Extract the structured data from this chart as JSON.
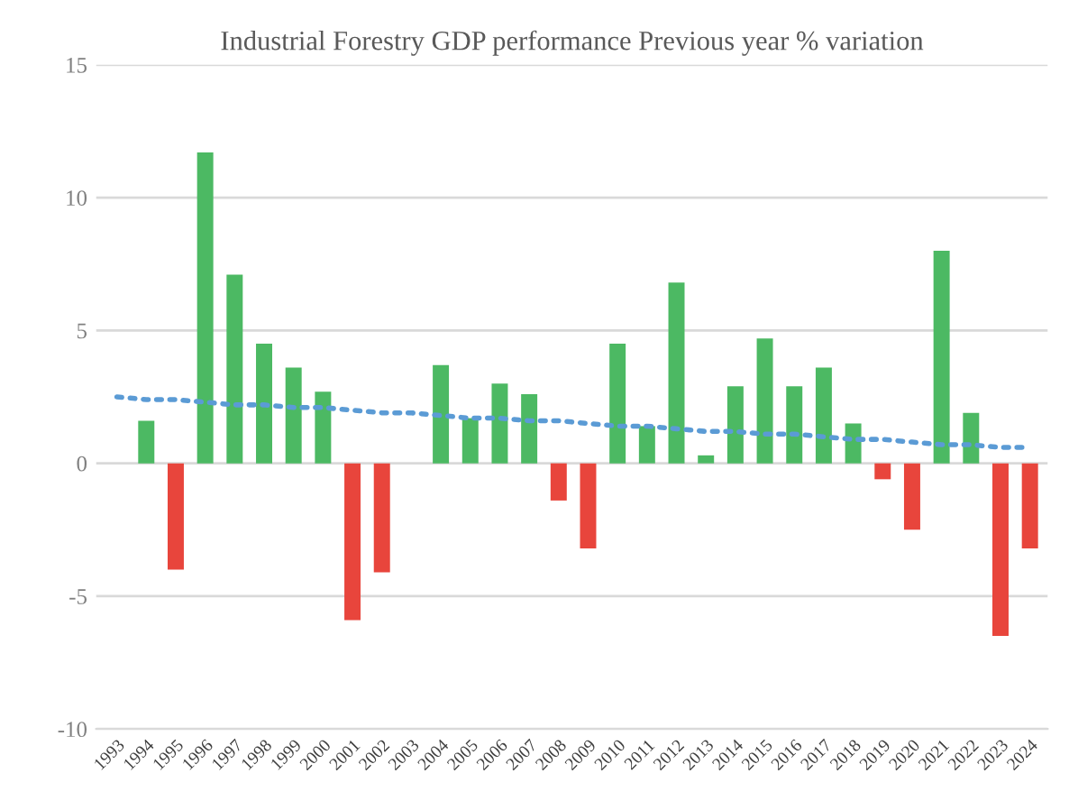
{
  "chart_data": {
    "type": "bar",
    "title": "Industrial Forestry GDP performance Previous year % variation",
    "categories": [
      "1993",
      "1994",
      "1995",
      "1996",
      "1997",
      "1998",
      "1999",
      "2000",
      "2001",
      "2002",
      "2003",
      "2004",
      "2005",
      "2006",
      "2007",
      "2008",
      "2009",
      "2010",
      "2011",
      "2012",
      "2013",
      "2014",
      "2015",
      "2016",
      "2017",
      "2018",
      "2019",
      "2020",
      "2021",
      "2022",
      "2023",
      "2024"
    ],
    "series": [
      {
        "values": [
          0,
          1.6,
          -4.0,
          11.7,
          7.1,
          4.5,
          3.6,
          2.7,
          -5.9,
          -4.1,
          0.0,
          3.7,
          1.7,
          3.0,
          2.6,
          -1.4,
          -3.2,
          4.5,
          1.4,
          6.8,
          0.3,
          2.9,
          4.7,
          2.9,
          3.6,
          1.5,
          -0.6,
          -2.5,
          8.0,
          1.9,
          -6.5,
          -3.2
        ],
        "colors": [
          "#4cb963",
          "#4cb963",
          "#e8453c",
          "#4cb963",
          "#4cb963",
          "#4cb963",
          "#4cb963",
          "#4cb963",
          "#e8453c",
          "#e8453c",
          "#4cb963",
          "#4cb963",
          "#4cb963",
          "#4cb963",
          "#4cb963",
          "#e8453c",
          "#e8453c",
          "#4cb963",
          "#4cb963",
          "#4cb963",
          "#4cb963",
          "#4cb963",
          "#4cb963",
          "#4cb963",
          "#4cb963",
          "#4cb963",
          "#e8453c",
          "#e8453c",
          "#4cb963",
          "#4cb963",
          "#e8453c",
          "#e8453c"
        ]
      },
      {
        "type": "line",
        "values": [
          2.5,
          2.4,
          2.4,
          2.3,
          2.2,
          2.2,
          2.1,
          2.1,
          2.0,
          1.9,
          1.9,
          1.8,
          1.7,
          1.7,
          1.6,
          1.6,
          1.5,
          1.4,
          1.4,
          1.3,
          1.2,
          1.2,
          1.1,
          1.1,
          1.0,
          0.9,
          0.9,
          0.8,
          0.7,
          0.7,
          0.6,
          0.6
        ],
        "color": "#5b9bd5",
        "line_style": "dotted"
      }
    ],
    "ylim": [
      -10,
      15
    ],
    "yticks": [
      -10,
      -5,
      0,
      5,
      10,
      15
    ],
    "grid": "y",
    "legend": false
  }
}
